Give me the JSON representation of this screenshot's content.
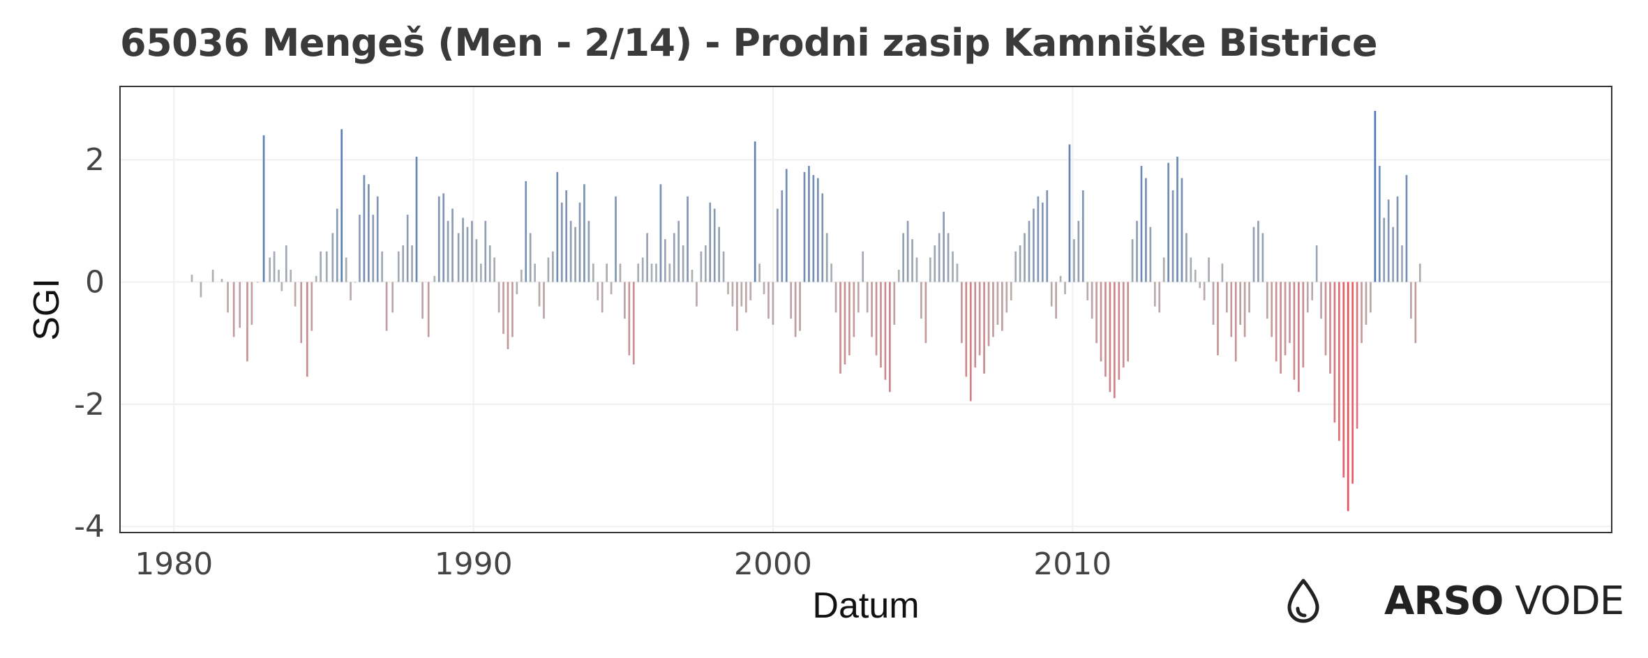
{
  "chart_data": {
    "type": "bar",
    "title": "65036 Mengeš (Men - 2/14) - Prodni zasip Kamniške Bistrice",
    "xlabel": "Datum",
    "ylabel": "SGI",
    "xlim": [
      1978.2,
      2028.0
    ],
    "ylim": [
      -4.1,
      3.2
    ],
    "x_ticks": [
      1980,
      1990,
      2000,
      2010
    ],
    "x_tick_labels": [
      "1980",
      "1990",
      "2000",
      "2010"
    ],
    "y_ticks": [
      2,
      0,
      -2,
      -4
    ],
    "y_tick_labels": [
      "2",
      "0",
      "-2",
      "-4"
    ],
    "grid": true,
    "bar_spacing_years": 0.0833,
    "colors": {
      "positive_strong": "#4e79b6",
      "neutral": "#b3b3b3",
      "negative_strong": "#f0505a"
    },
    "points": [
      [
        1980.6,
        0.12
      ],
      [
        1980.9,
        -0.25
      ],
      [
        1981.3,
        0.2
      ],
      [
        1981.6,
        0.05
      ],
      [
        1981.8,
        -0.5
      ],
      [
        1982.0,
        -0.9
      ],
      [
        1982.2,
        -0.75
      ],
      [
        1982.45,
        -1.3
      ],
      [
        1982.6,
        -0.7
      ],
      [
        1982.8,
        0.0
      ],
      [
        1983.0,
        2.4
      ],
      [
        1983.2,
        0.4
      ],
      [
        1983.35,
        0.5
      ],
      [
        1983.5,
        0.2
      ],
      [
        1983.6,
        -0.15
      ],
      [
        1983.75,
        0.6
      ],
      [
        1983.9,
        0.2
      ],
      [
        1984.05,
        -0.4
      ],
      [
        1984.25,
        -1.0
      ],
      [
        1984.45,
        -1.55
      ],
      [
        1984.6,
        -0.8
      ],
      [
        1984.75,
        0.1
      ],
      [
        1984.9,
        0.5
      ],
      [
        1985.1,
        0.5
      ],
      [
        1985.3,
        0.8
      ],
      [
        1985.45,
        1.2
      ],
      [
        1985.6,
        2.5
      ],
      [
        1985.75,
        0.4
      ],
      [
        1985.9,
        -0.3
      ],
      [
        1986.05,
        0.0
      ],
      [
        1986.2,
        1.1
      ],
      [
        1986.35,
        1.75
      ],
      [
        1986.5,
        1.6
      ],
      [
        1986.65,
        1.1
      ],
      [
        1986.8,
        1.4
      ],
      [
        1986.95,
        0.5
      ],
      [
        1987.1,
        -0.8
      ],
      [
        1987.3,
        -0.5
      ],
      [
        1987.5,
        0.5
      ],
      [
        1987.65,
        0.6
      ],
      [
        1987.8,
        1.1
      ],
      [
        1987.95,
        0.6
      ],
      [
        1988.1,
        2.05
      ],
      [
        1988.3,
        -0.6
      ],
      [
        1988.5,
        -0.9
      ],
      [
        1988.7,
        0.1
      ],
      [
        1988.85,
        1.4
      ],
      [
        1989.0,
        1.45
      ],
      [
        1989.15,
        1.0
      ],
      [
        1989.3,
        1.2
      ],
      [
        1989.5,
        0.8
      ],
      [
        1989.65,
        1.05
      ],
      [
        1989.8,
        0.9
      ],
      [
        1989.95,
        1.0
      ],
      [
        1990.1,
        0.7
      ],
      [
        1990.25,
        0.3
      ],
      [
        1990.4,
        1.0
      ],
      [
        1990.55,
        0.6
      ],
      [
        1990.7,
        0.4
      ],
      [
        1990.85,
        -0.5
      ],
      [
        1991.0,
        -0.85
      ],
      [
        1991.15,
        -1.1
      ],
      [
        1991.3,
        -0.9
      ],
      [
        1991.45,
        -0.2
      ],
      [
        1991.6,
        0.2
      ],
      [
        1991.75,
        1.65
      ],
      [
        1991.9,
        0.8
      ],
      [
        1992.05,
        0.3
      ],
      [
        1992.2,
        -0.4
      ],
      [
        1992.35,
        -0.6
      ],
      [
        1992.5,
        0.4
      ],
      [
        1992.65,
        0.5
      ],
      [
        1992.8,
        1.8
      ],
      [
        1992.95,
        1.3
      ],
      [
        1993.1,
        1.5
      ],
      [
        1993.25,
        1.0
      ],
      [
        1993.4,
        0.9
      ],
      [
        1993.55,
        1.3
      ],
      [
        1993.7,
        1.6
      ],
      [
        1993.85,
        1.0
      ],
      [
        1994.0,
        0.3
      ],
      [
        1994.15,
        -0.3
      ],
      [
        1994.3,
        -0.5
      ],
      [
        1994.45,
        0.3
      ],
      [
        1994.6,
        -0.2
      ],
      [
        1994.75,
        1.4
      ],
      [
        1994.9,
        0.3
      ],
      [
        1995.05,
        -0.6
      ],
      [
        1995.2,
        -1.2
      ],
      [
        1995.35,
        -1.35
      ],
      [
        1995.5,
        0.3
      ],
      [
        1995.65,
        0.4
      ],
      [
        1995.8,
        0.8
      ],
      [
        1995.95,
        0.3
      ],
      [
        1996.1,
        0.3
      ],
      [
        1996.25,
        1.6
      ],
      [
        1996.4,
        0.7
      ],
      [
        1996.55,
        0.3
      ],
      [
        1996.7,
        0.8
      ],
      [
        1996.85,
        1.0
      ],
      [
        1997.0,
        0.6
      ],
      [
        1997.15,
        1.4
      ],
      [
        1997.3,
        0.2
      ],
      [
        1997.45,
        -0.4
      ],
      [
        1997.6,
        0.5
      ],
      [
        1997.75,
        0.6
      ],
      [
        1997.9,
        1.3
      ],
      [
        1998.05,
        1.2
      ],
      [
        1998.2,
        0.9
      ],
      [
        1998.35,
        0.5
      ],
      [
        1998.5,
        -0.2
      ],
      [
        1998.65,
        -0.4
      ],
      [
        1998.8,
        -0.8
      ],
      [
        1998.95,
        -0.4
      ],
      [
        1999.1,
        -0.5
      ],
      [
        1999.25,
        -0.3
      ],
      [
        1999.4,
        2.3
      ],
      [
        1999.55,
        0.3
      ],
      [
        1999.7,
        -0.2
      ],
      [
        1999.85,
        -0.6
      ],
      [
        2000.0,
        -0.7
      ],
      [
        2000.15,
        1.2
      ],
      [
        2000.3,
        1.5
      ],
      [
        2000.45,
        1.85
      ],
      [
        2000.6,
        -0.6
      ],
      [
        2000.75,
        -0.9
      ],
      [
        2000.9,
        -0.8
      ],
      [
        2001.05,
        1.8
      ],
      [
        2001.2,
        1.9
      ],
      [
        2001.35,
        1.75
      ],
      [
        2001.5,
        1.7
      ],
      [
        2001.65,
        1.45
      ],
      [
        2001.8,
        0.8
      ],
      [
        2001.95,
        0.3
      ],
      [
        2002.1,
        -0.5
      ],
      [
        2002.25,
        -1.5
      ],
      [
        2002.4,
        -1.35
      ],
      [
        2002.55,
        -1.2
      ],
      [
        2002.7,
        -0.9
      ],
      [
        2002.85,
        -0.5
      ],
      [
        2003.0,
        0.5
      ],
      [
        2003.15,
        -0.5
      ],
      [
        2003.3,
        -0.9
      ],
      [
        2003.45,
        -1.2
      ],
      [
        2003.6,
        -1.4
      ],
      [
        2003.75,
        -1.6
      ],
      [
        2003.9,
        -1.8
      ],
      [
        2004.05,
        -0.7
      ],
      [
        2004.2,
        0.2
      ],
      [
        2004.35,
        0.8
      ],
      [
        2004.5,
        1.0
      ],
      [
        2004.65,
        0.7
      ],
      [
        2004.8,
        0.4
      ],
      [
        2004.95,
        -0.6
      ],
      [
        2005.1,
        -1.0
      ],
      [
        2005.25,
        0.4
      ],
      [
        2005.4,
        0.6
      ],
      [
        2005.55,
        0.8
      ],
      [
        2005.7,
        1.15
      ],
      [
        2005.85,
        0.8
      ],
      [
        2006.0,
        0.5
      ],
      [
        2006.15,
        0.3
      ],
      [
        2006.3,
        -1.0
      ],
      [
        2006.45,
        -1.55
      ],
      [
        2006.6,
        -1.95
      ],
      [
        2006.75,
        -1.4
      ],
      [
        2006.9,
        -1.2
      ],
      [
        2007.05,
        -1.5
      ],
      [
        2007.2,
        -1.05
      ],
      [
        2007.35,
        -0.9
      ],
      [
        2007.5,
        -0.7
      ],
      [
        2007.65,
        -0.8
      ],
      [
        2007.8,
        -0.5
      ],
      [
        2007.95,
        -0.3
      ],
      [
        2008.1,
        0.5
      ],
      [
        2008.25,
        0.6
      ],
      [
        2008.4,
        0.8
      ],
      [
        2008.55,
        1.0
      ],
      [
        2008.7,
        1.2
      ],
      [
        2008.85,
        1.4
      ],
      [
        2009.0,
        1.3
      ],
      [
        2009.15,
        1.5
      ],
      [
        2009.3,
        -0.4
      ],
      [
        2009.45,
        -0.6
      ],
      [
        2009.6,
        0.1
      ],
      [
        2009.75,
        -0.2
      ],
      [
        2009.9,
        2.25
      ],
      [
        2010.05,
        0.7
      ],
      [
        2010.2,
        1.0
      ],
      [
        2010.35,
        1.5
      ],
      [
        2010.5,
        -0.3
      ],
      [
        2010.65,
        -0.6
      ],
      [
        2010.8,
        -1.0
      ],
      [
        2010.95,
        -1.3
      ],
      [
        2011.1,
        -1.55
      ],
      [
        2011.25,
        -1.8
      ],
      [
        2011.4,
        -1.9
      ],
      [
        2011.55,
        -1.6
      ],
      [
        2011.7,
        -1.4
      ],
      [
        2011.85,
        -1.3
      ],
      [
        2012.0,
        0.7
      ],
      [
        2012.15,
        1.0
      ],
      [
        2012.3,
        1.9
      ],
      [
        2012.45,
        1.7
      ],
      [
        2012.6,
        0.9
      ],
      [
        2012.75,
        -0.4
      ],
      [
        2012.9,
        -0.5
      ],
      [
        2013.05,
        0.4
      ],
      [
        2013.2,
        1.95
      ],
      [
        2013.35,
        1.5
      ],
      [
        2013.5,
        2.05
      ],
      [
        2013.65,
        1.7
      ],
      [
        2013.8,
        0.8
      ],
      [
        2013.95,
        0.4
      ],
      [
        2014.1,
        0.2
      ],
      [
        2014.25,
        -0.1
      ],
      [
        2014.4,
        -0.3
      ],
      [
        2014.55,
        0.4
      ],
      [
        2014.7,
        -0.7
      ],
      [
        2014.85,
        -1.2
      ],
      [
        2015.0,
        0.3
      ],
      [
        2015.15,
        -0.5
      ],
      [
        2015.3,
        -0.9
      ],
      [
        2015.45,
        -1.3
      ],
      [
        2015.6,
        -0.7
      ],
      [
        2015.75,
        -0.9
      ],
      [
        2015.9,
        -0.5
      ],
      [
        2016.05,
        0.9
      ],
      [
        2016.2,
        1.0
      ],
      [
        2016.35,
        0.8
      ],
      [
        2016.5,
        -0.6
      ],
      [
        2016.65,
        -0.9
      ],
      [
        2016.8,
        -1.3
      ],
      [
        2016.95,
        -1.5
      ],
      [
        2017.1,
        -1.2
      ],
      [
        2017.25,
        -1.0
      ],
      [
        2017.4,
        -1.6
      ],
      [
        2017.55,
        -1.8
      ],
      [
        2017.7,
        -1.4
      ],
      [
        2017.85,
        -0.5
      ],
      [
        2018.0,
        -0.3
      ],
      [
        2018.15,
        0.6
      ],
      [
        2018.3,
        -0.6
      ],
      [
        2018.45,
        -1.2
      ],
      [
        2018.6,
        -1.5
      ],
      [
        2018.75,
        -2.3
      ],
      [
        2018.9,
        -2.6
      ],
      [
        2019.05,
        -3.2
      ],
      [
        2019.2,
        -3.75
      ],
      [
        2019.35,
        -3.3
      ],
      [
        2019.5,
        -2.4
      ],
      [
        2019.65,
        -1.0
      ],
      [
        2019.8,
        -0.7
      ],
      [
        2019.95,
        -0.5
      ],
      [
        2020.1,
        2.8
      ],
      [
        2020.25,
        1.9
      ],
      [
        2020.4,
        1.05
      ],
      [
        2020.55,
        1.35
      ],
      [
        2020.7,
        0.9
      ],
      [
        2020.85,
        1.4
      ],
      [
        2021.0,
        0.6
      ],
      [
        2021.15,
        1.75
      ],
      [
        2021.3,
        -0.6
      ],
      [
        2021.45,
        -1.0
      ],
      [
        2021.6,
        0.3
      ]
    ]
  },
  "logo": {
    "text_bold": "ARSO",
    "text_regular": "VODE",
    "icon": "water-drop-icon"
  }
}
